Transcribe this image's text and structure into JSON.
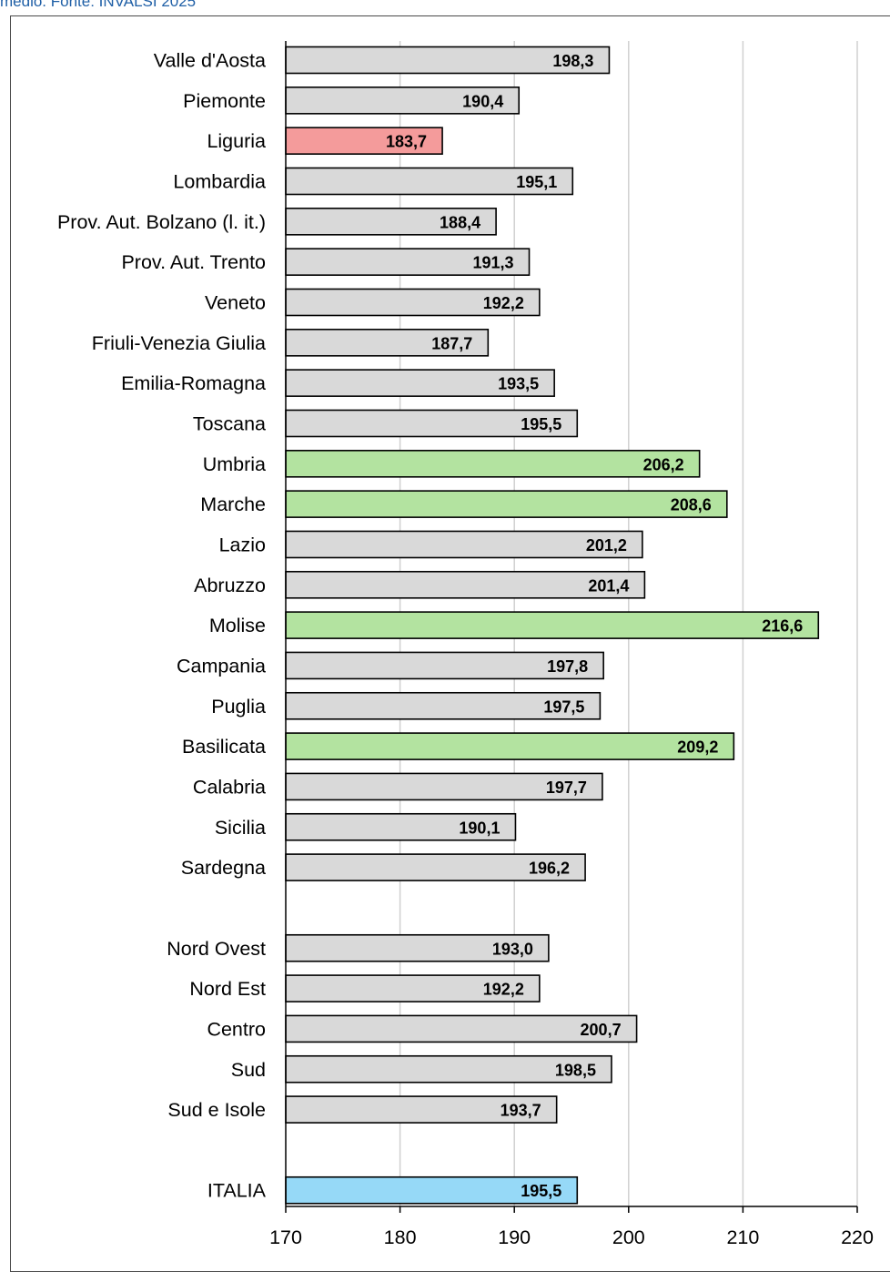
{
  "caption": "medio. Fonte: INVALSI 2025",
  "colors": {
    "default": "#d9d9d9",
    "low": "#f49b9b",
    "high": "#b3e3a0",
    "national": "#96d9f7",
    "border": "#000000",
    "grid": "#d0d0d0"
  },
  "chart_data": {
    "type": "bar",
    "orientation": "horizontal",
    "title": "",
    "xlabel": "",
    "ylabel": "",
    "xlim": [
      170,
      220
    ],
    "ticks": [
      170,
      180,
      190,
      200,
      210,
      220
    ],
    "grid": "vertical",
    "bars": [
      {
        "label": "Valle d'Aosta",
        "value": 198.3,
        "display": "198,3",
        "highlight": "default"
      },
      {
        "label": "Piemonte",
        "value": 190.4,
        "display": "190,4",
        "highlight": "default"
      },
      {
        "label": "Liguria",
        "value": 183.7,
        "display": "183,7",
        "highlight": "low"
      },
      {
        "label": "Lombardia",
        "value": 195.1,
        "display": "195,1",
        "highlight": "default"
      },
      {
        "label": "Prov. Aut. Bolzano (l. it.)",
        "value": 188.4,
        "display": "188,4",
        "highlight": "default"
      },
      {
        "label": "Prov. Aut. Trento",
        "value": 191.3,
        "display": "191,3",
        "highlight": "default"
      },
      {
        "label": "Veneto",
        "value": 192.2,
        "display": "192,2",
        "highlight": "default"
      },
      {
        "label": "Friuli-Venezia Giulia",
        "value": 187.7,
        "display": "187,7",
        "highlight": "default"
      },
      {
        "label": "Emilia-Romagna",
        "value": 193.5,
        "display": "193,5",
        "highlight": "default"
      },
      {
        "label": "Toscana",
        "value": 195.5,
        "display": "195,5",
        "highlight": "default"
      },
      {
        "label": "Umbria",
        "value": 206.2,
        "display": "206,2",
        "highlight": "high"
      },
      {
        "label": "Marche",
        "value": 208.6,
        "display": "208,6",
        "highlight": "high"
      },
      {
        "label": "Lazio",
        "value": 201.2,
        "display": "201,2",
        "highlight": "default"
      },
      {
        "label": "Abruzzo",
        "value": 201.4,
        "display": "201,4",
        "highlight": "default"
      },
      {
        "label": "Molise",
        "value": 216.6,
        "display": "216,6",
        "highlight": "high"
      },
      {
        "label": "Campania",
        "value": 197.8,
        "display": "197,8",
        "highlight": "default"
      },
      {
        "label": "Puglia",
        "value": 197.5,
        "display": "197,5",
        "highlight": "default"
      },
      {
        "label": "Basilicata",
        "value": 209.2,
        "display": "209,2",
        "highlight": "high"
      },
      {
        "label": "Calabria",
        "value": 197.7,
        "display": "197,7",
        "highlight": "default"
      },
      {
        "label": "Sicilia",
        "value": 190.1,
        "display": "190,1",
        "highlight": "default"
      },
      {
        "label": "Sardegna",
        "value": 196.2,
        "display": "196,2",
        "highlight": "default"
      },
      {
        "label": "",
        "value": null,
        "display": "",
        "highlight": "none"
      },
      {
        "label": "Nord Ovest",
        "value": 193.0,
        "display": "193,0",
        "highlight": "default"
      },
      {
        "label": "Nord Est",
        "value": 192.2,
        "display": "192,2",
        "highlight": "default"
      },
      {
        "label": "Centro",
        "value": 200.7,
        "display": "200,7",
        "highlight": "default"
      },
      {
        "label": "Sud",
        "value": 198.5,
        "display": "198,5",
        "highlight": "default"
      },
      {
        "label": "Sud e Isole",
        "value": 193.7,
        "display": "193,7",
        "highlight": "default"
      },
      {
        "label": "",
        "value": null,
        "display": "",
        "highlight": "none"
      },
      {
        "label": "ITALIA",
        "value": 195.5,
        "display": "195,5",
        "highlight": "national"
      }
    ]
  }
}
